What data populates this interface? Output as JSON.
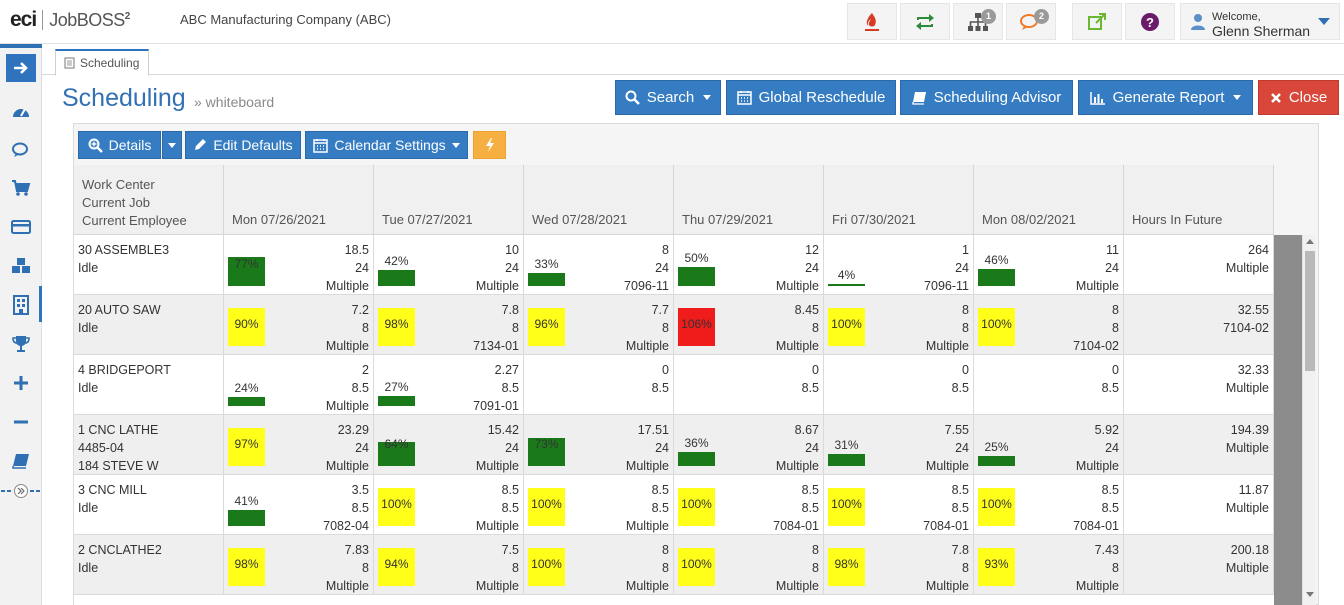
{
  "app": {
    "logo_brand": "eci",
    "logo_product": "JobBOSS",
    "logo_product_sup": "2",
    "company": "ABC Manufacturing Company   (ABC)"
  },
  "toolbar": {
    "notifications_badge": "1",
    "messages_badge": "2",
    "welcome": "Welcome,",
    "user_name": "Glenn Sherman"
  },
  "tab": {
    "label": "Scheduling"
  },
  "header": {
    "title": "Scheduling",
    "breadcrumb": "» whiteboard",
    "search_label": "Search",
    "global_reschedule_label": "Global Reschedule",
    "scheduling_advisor_label": "Scheduling Advisor",
    "generate_report_label": "Generate Report",
    "close_label": "Close"
  },
  "panel_toolbar": {
    "details_label": "Details",
    "edit_defaults_label": "Edit Defaults",
    "calendar_settings_label": "Calendar Settings"
  },
  "colors": {
    "accent": "#357cc2",
    "green": "#1a7a1a",
    "yellow": "#ffff1a",
    "red": "#f01b1b",
    "close": "#d9473a",
    "lightning": "#f6b042"
  },
  "grid": {
    "first_header": [
      "Work Center",
      "Current Job",
      "Current Employee"
    ],
    "day_headers": [
      "Mon 07/26/2021",
      "Tue 07/27/2021",
      "Wed 07/28/2021",
      "Thu 07/29/2021",
      "Fri 07/30/2021",
      "Mon 08/02/2021"
    ],
    "future_header": "Hours In Future",
    "rows": [
      {
        "name": "30 ASSEMBLE3",
        "job": "Idle",
        "employee": "",
        "days": [
          {
            "pct": "77%",
            "load": 77,
            "color": "green",
            "hours": "18.5",
            "cap": "24",
            "job": "Multiple"
          },
          {
            "pct": "42%",
            "load": 42,
            "color": "green",
            "hours": "10",
            "cap": "24",
            "job": "Multiple"
          },
          {
            "pct": "33%",
            "load": 33,
            "color": "green",
            "hours": "8",
            "cap": "24",
            "job": "7096-11"
          },
          {
            "pct": "50%",
            "load": 50,
            "color": "green",
            "hours": "12",
            "cap": "24",
            "job": "Multiple"
          },
          {
            "pct": "4%",
            "load": 4,
            "color": "green",
            "hours": "1",
            "cap": "24",
            "job": "7096-11"
          },
          {
            "pct": "46%",
            "load": 46,
            "color": "green",
            "hours": "11",
            "cap": "24",
            "job": "Multiple"
          }
        ],
        "future_hours": "264",
        "future_job": "Multiple"
      },
      {
        "name": "20 AUTO SAW",
        "job": "Idle",
        "employee": "",
        "days": [
          {
            "pct": "90%",
            "load": 100,
            "color": "yellow",
            "hours": "7.2",
            "cap": "8",
            "job": "Multiple"
          },
          {
            "pct": "98%",
            "load": 100,
            "color": "yellow",
            "hours": "7.8",
            "cap": "8",
            "job": "7134-01"
          },
          {
            "pct": "96%",
            "load": 100,
            "color": "yellow",
            "hours": "7.7",
            "cap": "8",
            "job": "Multiple"
          },
          {
            "pct": "106%",
            "load": 100,
            "color": "red",
            "hours": "8.45",
            "cap": "8",
            "job": "Multiple"
          },
          {
            "pct": "100%",
            "load": 100,
            "color": "yellow",
            "hours": "8",
            "cap": "8",
            "job": "Multiple"
          },
          {
            "pct": "100%",
            "load": 100,
            "color": "yellow",
            "hours": "8",
            "cap": "8",
            "job": "7104-02"
          }
        ],
        "future_hours": "32.55",
        "future_job": "7104-02"
      },
      {
        "name": "4 BRIDGEPORT",
        "job": "Idle",
        "employee": "",
        "days": [
          {
            "pct": "24%",
            "load": 24,
            "color": "green",
            "hours": "2",
            "cap": "8.5",
            "job": "Multiple"
          },
          {
            "pct": "27%",
            "load": 27,
            "color": "green",
            "hours": "2.27",
            "cap": "8.5",
            "job": "7091-01"
          },
          {
            "pct": "",
            "load": 0,
            "color": "none",
            "hours": "0",
            "cap": "8.5",
            "job": ""
          },
          {
            "pct": "",
            "load": 0,
            "color": "none",
            "hours": "0",
            "cap": "8.5",
            "job": ""
          },
          {
            "pct": "",
            "load": 0,
            "color": "none",
            "hours": "0",
            "cap": "8.5",
            "job": ""
          },
          {
            "pct": "",
            "load": 0,
            "color": "none",
            "hours": "0",
            "cap": "8.5",
            "job": ""
          }
        ],
        "future_hours": "32.33",
        "future_job": "Multiple"
      },
      {
        "name": "1 CNC LATHE",
        "job": "4485-04",
        "employee": "184 STEVE W",
        "days": [
          {
            "pct": "97%",
            "load": 100,
            "color": "yellow",
            "hours": "23.29",
            "cap": "24",
            "job": "Multiple"
          },
          {
            "pct": "64%",
            "load": 64,
            "color": "green",
            "hours": "15.42",
            "cap": "24",
            "job": "Multiple"
          },
          {
            "pct": "73%",
            "load": 73,
            "color": "green",
            "hours": "17.51",
            "cap": "24",
            "job": "Multiple"
          },
          {
            "pct": "36%",
            "load": 36,
            "color": "green",
            "hours": "8.67",
            "cap": "24",
            "job": "Multiple"
          },
          {
            "pct": "31%",
            "load": 31,
            "color": "green",
            "hours": "7.55",
            "cap": "24",
            "job": "Multiple"
          },
          {
            "pct": "25%",
            "load": 25,
            "color": "green",
            "hours": "5.92",
            "cap": "24",
            "job": "Multiple"
          }
        ],
        "future_hours": "194.39",
        "future_job": "Multiple"
      },
      {
        "name": "3 CNC MILL",
        "job": "Idle",
        "employee": "",
        "days": [
          {
            "pct": "41%",
            "load": 41,
            "color": "green",
            "hours": "3.5",
            "cap": "8.5",
            "job": "7082-04"
          },
          {
            "pct": "100%",
            "load": 100,
            "color": "yellow",
            "hours": "8.5",
            "cap": "8.5",
            "job": "Multiple"
          },
          {
            "pct": "100%",
            "load": 100,
            "color": "yellow",
            "hours": "8.5",
            "cap": "8.5",
            "job": "Multiple"
          },
          {
            "pct": "100%",
            "load": 100,
            "color": "yellow",
            "hours": "8.5",
            "cap": "8.5",
            "job": "7084-01"
          },
          {
            "pct": "100%",
            "load": 100,
            "color": "yellow",
            "hours": "8.5",
            "cap": "8.5",
            "job": "7084-01"
          },
          {
            "pct": "100%",
            "load": 100,
            "color": "yellow",
            "hours": "8.5",
            "cap": "8.5",
            "job": "7084-01"
          }
        ],
        "future_hours": "11.87",
        "future_job": "Multiple"
      },
      {
        "name": "2 CNCLATHE2",
        "job": "Idle",
        "employee": "",
        "days": [
          {
            "pct": "98%",
            "load": 100,
            "color": "yellow",
            "hours": "7.83",
            "cap": "8",
            "job": "Multiple"
          },
          {
            "pct": "94%",
            "load": 100,
            "color": "yellow",
            "hours": "7.5",
            "cap": "8",
            "job": "Multiple"
          },
          {
            "pct": "100%",
            "load": 100,
            "color": "yellow",
            "hours": "8",
            "cap": "8",
            "job": "Multiple"
          },
          {
            "pct": "100%",
            "load": 100,
            "color": "yellow",
            "hours": "8",
            "cap": "8",
            "job": "Multiple"
          },
          {
            "pct": "98%",
            "load": 100,
            "color": "yellow",
            "hours": "7.8",
            "cap": "8",
            "job": "Multiple"
          },
          {
            "pct": "93%",
            "load": 100,
            "color": "yellow",
            "hours": "7.43",
            "cap": "8",
            "job": "Multiple"
          }
        ],
        "future_hours": "200.18",
        "future_job": "Multiple"
      }
    ]
  }
}
